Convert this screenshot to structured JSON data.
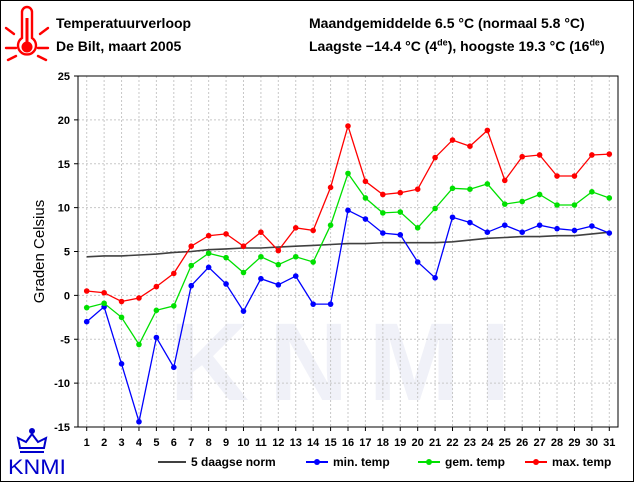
{
  "header": {
    "title": "Temperatuurverloop",
    "subtitle": "De Bilt, maart 2005",
    "monthly_avg_line": "Maandgemiddelde 6.5 °C (normaal 5.8 °C)",
    "extremes_prefix": "Laagste −14.4 °C (4",
    "extremes_sup1": "de",
    "extremes_mid": "), hoogste 19.3 °C (16",
    "extremes_sup2": "de",
    "extremes_suffix": ")"
  },
  "logo": {
    "text": "KNMI",
    "icon": "crown-icon"
  },
  "watermark": {
    "text": "KNMI"
  },
  "icons": {
    "thermometer": "thermometer-icon"
  },
  "colors": {
    "norm": "#404040",
    "min": "#0000ff",
    "avg": "#00e000",
    "max": "#ff0000",
    "thermometer": "#ff0000",
    "logo": "#0000cc"
  },
  "chart_data": {
    "type": "line",
    "ylabel": "Graden Celsius",
    "xlabel": "",
    "ylim": [
      -15,
      25
    ],
    "yticks": [
      -15,
      -10,
      -5,
      0,
      5,
      10,
      15,
      20,
      25
    ],
    "x": [
      1,
      2,
      3,
      4,
      5,
      6,
      7,
      8,
      9,
      10,
      11,
      12,
      13,
      14,
      15,
      16,
      17,
      18,
      19,
      20,
      21,
      22,
      23,
      24,
      25,
      26,
      27,
      28,
      29,
      30,
      31
    ],
    "grid": true,
    "legend_position": "bottom",
    "series": [
      {
        "name": "5 daagse norm",
        "key": "norm",
        "marker": false,
        "values": [
          4.4,
          4.5,
          4.5,
          4.6,
          4.7,
          4.9,
          5.0,
          5.2,
          5.3,
          5.4,
          5.4,
          5.5,
          5.6,
          5.7,
          5.8,
          5.9,
          5.9,
          6.0,
          6.0,
          6.0,
          6.0,
          6.1,
          6.3,
          6.5,
          6.6,
          6.7,
          6.7,
          6.8,
          6.8,
          7.0,
          7.2
        ]
      },
      {
        "name": "min. temp",
        "key": "min",
        "marker": true,
        "values": [
          -3.0,
          -1.3,
          -7.8,
          -14.4,
          -4.8,
          -8.2,
          1.1,
          3.2,
          1.3,
          -1.8,
          1.9,
          1.2,
          2.2,
          -1.0,
          -1.0,
          9.7,
          8.7,
          7.1,
          6.9,
          3.8,
          2.0,
          8.9,
          8.3,
          7.2,
          8.0,
          7.2,
          8.0,
          7.6,
          7.4,
          7.9,
          7.1
        ]
      },
      {
        "name": "gem. temp",
        "key": "avg",
        "marker": true,
        "values": [
          -1.4,
          -0.9,
          -2.5,
          -5.6,
          -1.7,
          -1.2,
          3.4,
          4.8,
          4.3,
          2.6,
          4.4,
          3.5,
          4.4,
          3.8,
          8.0,
          13.9,
          11.1,
          9.4,
          9.5,
          7.7,
          9.9,
          12.2,
          12.1,
          12.7,
          10.4,
          10.7,
          11.5,
          10.3,
          10.3,
          11.8,
          11.1
        ]
      },
      {
        "name": "max. temp",
        "key": "max",
        "marker": true,
        "values": [
          0.5,
          0.3,
          -0.7,
          -0.3,
          1.0,
          2.5,
          5.6,
          6.8,
          7.0,
          5.6,
          7.2,
          5.1,
          7.7,
          7.4,
          12.3,
          19.3,
          13.0,
          11.5,
          11.7,
          12.1,
          15.7,
          17.7,
          17.0,
          18.8,
          13.1,
          15.8,
          16.0,
          13.6,
          13.6,
          16.0,
          16.1
        ]
      }
    ]
  }
}
